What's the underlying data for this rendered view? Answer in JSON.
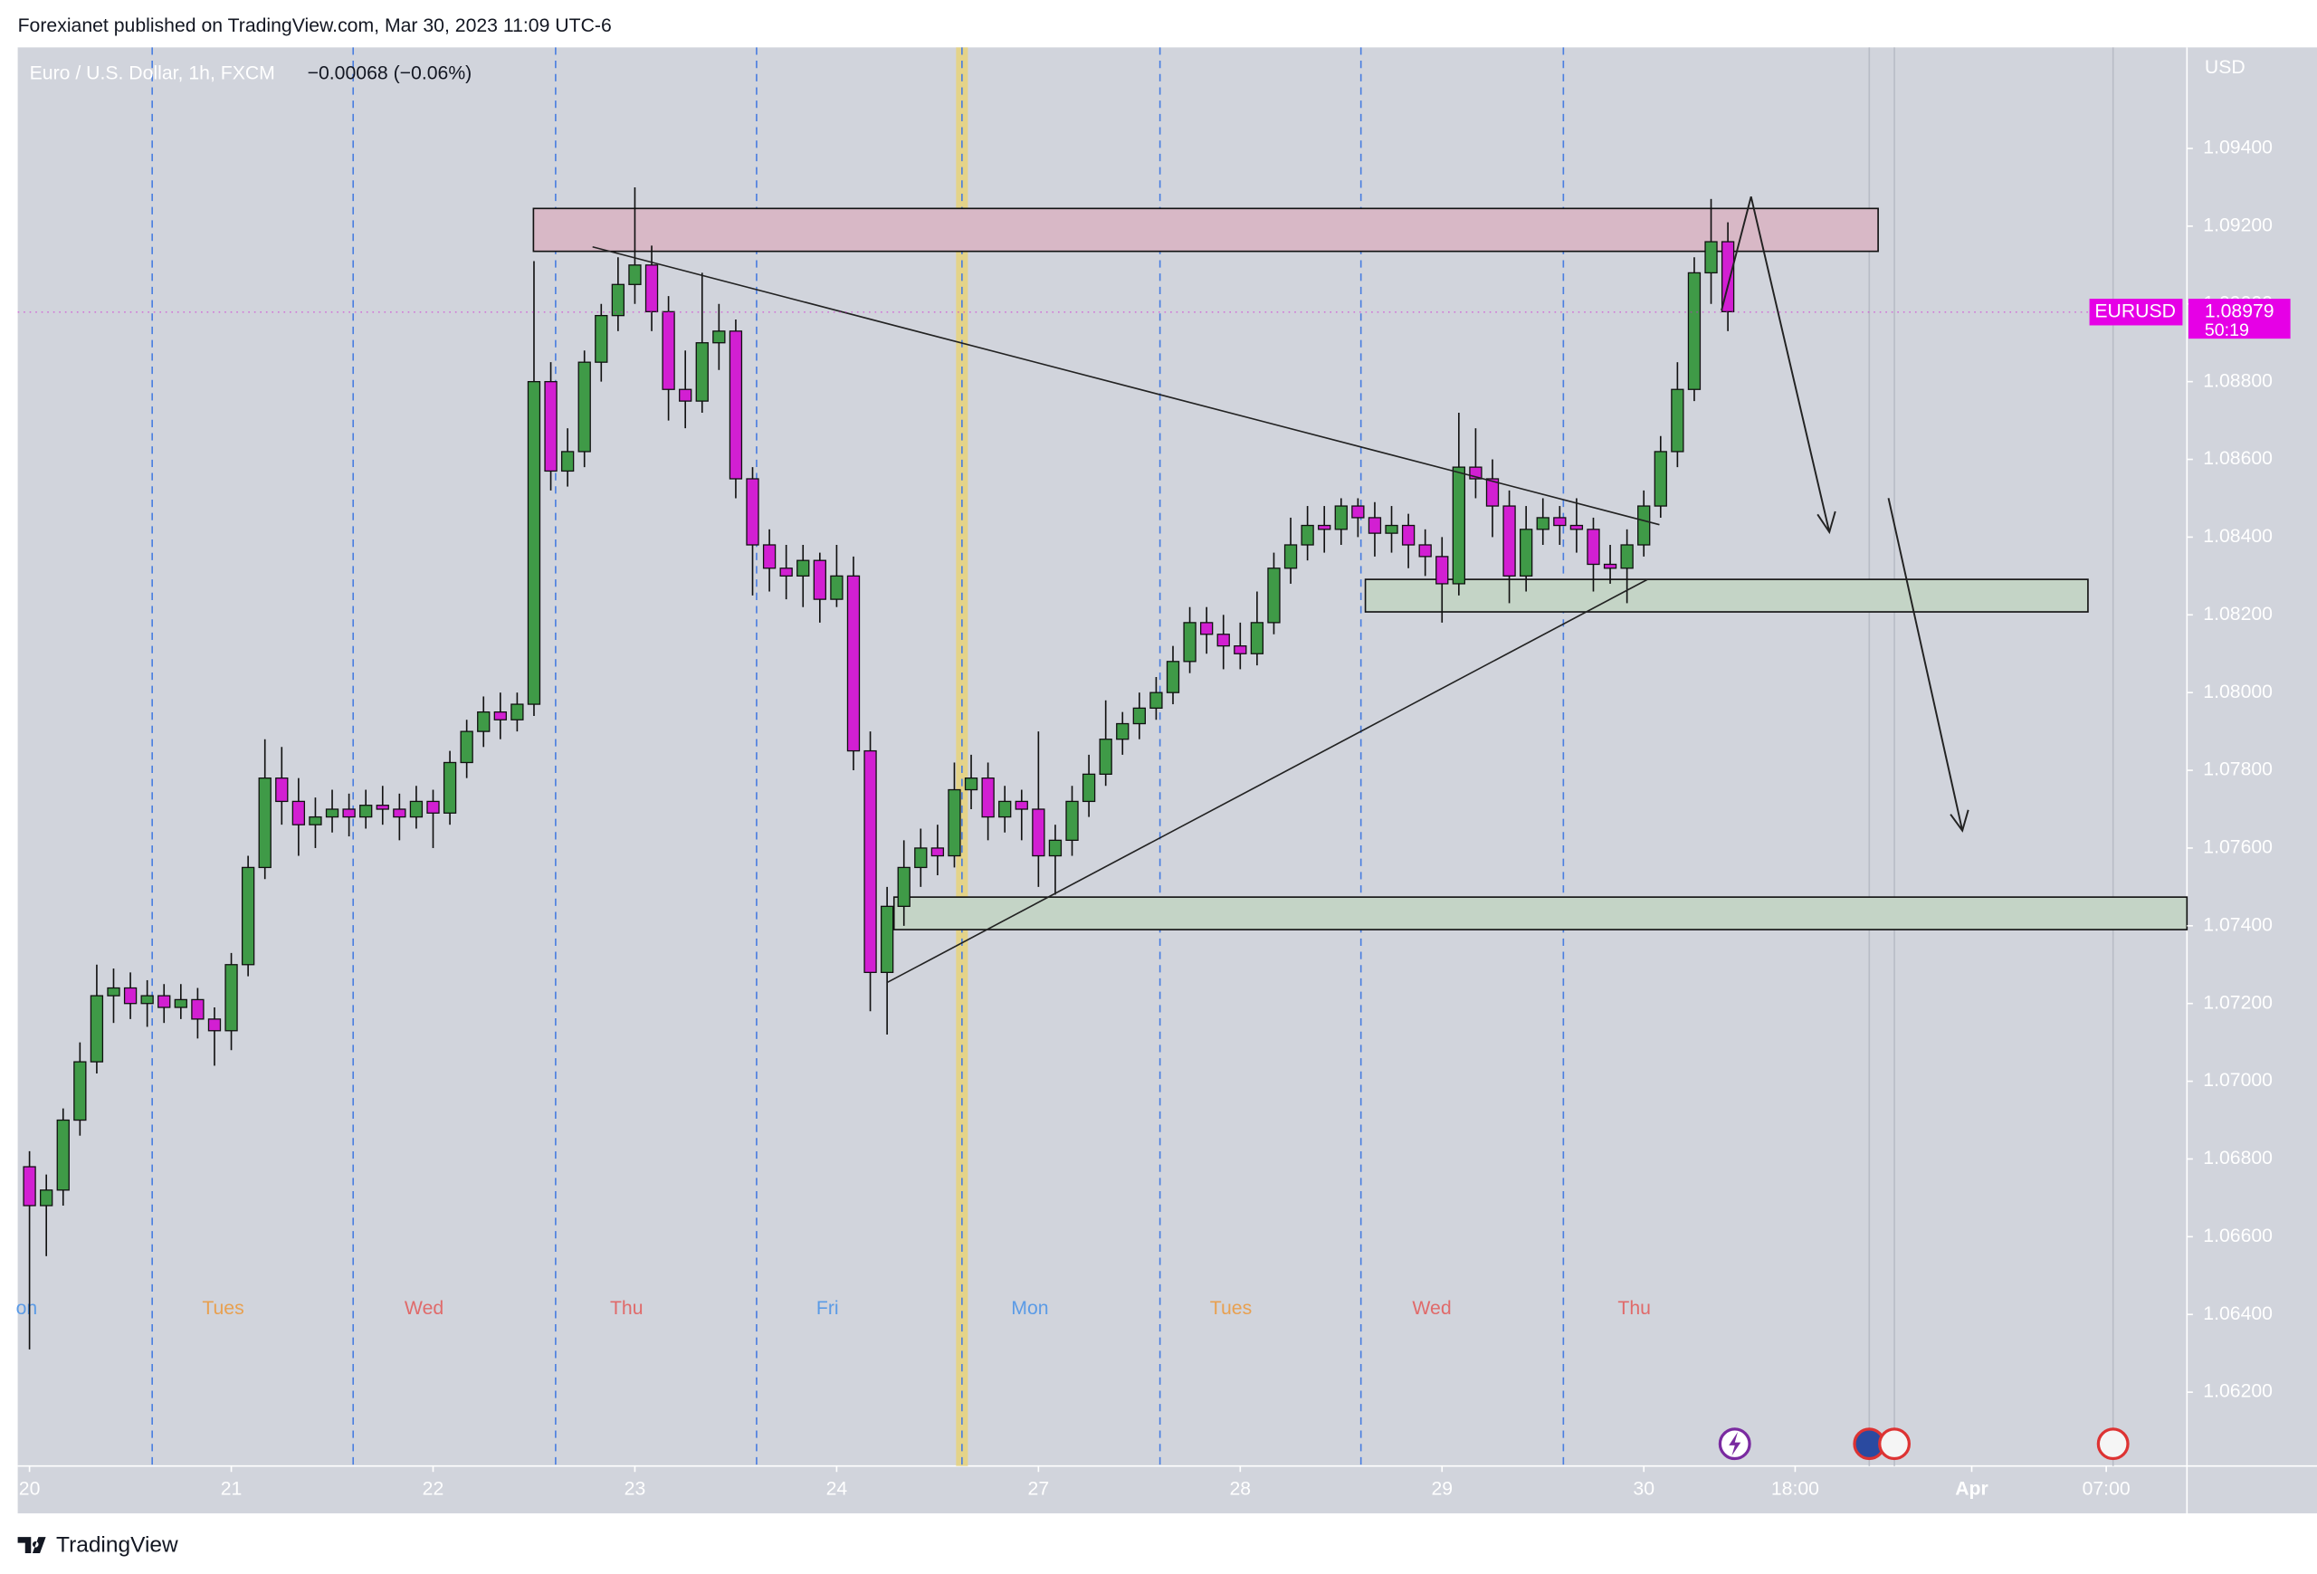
{
  "header": {
    "published": "Forexianet published on TradingView.com, Mar 30, 2023 11:09 UTC-6"
  },
  "footer": {
    "brand": "TradingView"
  },
  "chart_data": {
    "type": "candlestick",
    "title": "Euro / U.S. Dollar, 1h, FXCM",
    "change": "−0.00068 (−0.06%)",
    "currency": "USD",
    "symbol": "EURUSD",
    "last_price": 1.08979,
    "countdown": "50:19",
    "session_labels": [
      "on",
      "Tues",
      "Wed",
      "Thu",
      "Fri",
      "Mon",
      "Tues",
      "Wed",
      "Thu"
    ],
    "up_color": "#3f9a47",
    "down_color": "#d21fd2",
    "grid": false,
    "xlim": [
      -1.4,
      256.6
    ],
    "xticks": [
      {
        "value": 0,
        "label": "20"
      },
      {
        "value": 24,
        "label": "21"
      },
      {
        "value": 48,
        "label": "22"
      },
      {
        "value": 72,
        "label": "23"
      },
      {
        "value": 96,
        "label": "24"
      },
      {
        "value": 120,
        "label": "27"
      },
      {
        "value": 144,
        "label": "28"
      },
      {
        "value": 168,
        "label": "29"
      },
      {
        "value": 192,
        "label": "30"
      },
      {
        "value": 210,
        "label": "18:00"
      },
      {
        "value": 231,
        "label": "Apr"
      },
      {
        "value": 247,
        "label": "07:00"
      }
    ],
    "ylim": [
      1.0601,
      1.0966
    ],
    "yticks": [
      {
        "value": 1.062,
        "label": "1.06200"
      },
      {
        "value": 1.064,
        "label": "1.06400"
      },
      {
        "value": 1.066,
        "label": "1.06600"
      },
      {
        "value": 1.068,
        "label": "1.06800"
      },
      {
        "value": 1.07,
        "label": "1.07000"
      },
      {
        "value": 1.072,
        "label": "1.07200"
      },
      {
        "value": 1.074,
        "label": "1.07400"
      },
      {
        "value": 1.076,
        "label": "1.07600"
      },
      {
        "value": 1.078,
        "label": "1.07800"
      },
      {
        "value": 1.08,
        "label": "1.08000"
      },
      {
        "value": 1.082,
        "label": "1.08200"
      },
      {
        "value": 1.084,
        "label": "1.08400"
      },
      {
        "value": 1.086,
        "label": "1.08600"
      },
      {
        "value": 1.088,
        "label": "1.08800"
      },
      {
        "value": 1.09,
        "label": "1.09000"
      },
      {
        "value": 1.092,
        "label": "1.09200"
      },
      {
        "value": 1.094,
        "label": "1.09400"
      }
    ],
    "x": [
      0,
      2,
      4,
      6,
      8,
      10,
      12,
      14,
      16,
      18,
      20,
      22,
      24,
      26,
      28,
      30,
      32,
      34,
      36,
      38,
      40,
      42,
      44,
      46,
      48,
      50,
      52,
      54,
      56,
      58,
      60,
      62,
      64,
      66,
      68,
      70,
      72,
      74,
      76,
      78,
      80,
      82,
      84,
      86,
      88,
      90,
      92,
      94,
      96,
      98,
      100,
      102,
      104,
      106,
      108,
      110,
      112,
      114,
      116,
      118,
      120,
      122,
      124,
      126,
      128,
      130,
      132,
      134,
      136,
      138,
      140,
      142,
      144,
      146,
      148,
      150,
      152,
      154,
      156,
      158,
      160,
      162,
      164,
      166,
      168,
      170,
      172,
      174,
      176,
      178,
      180,
      182,
      184,
      186,
      188,
      190,
      192,
      194,
      196,
      198,
      200,
      202
    ],
    "open": [
      1.0678,
      1.0668,
      1.0672,
      1.069,
      1.0705,
      1.0722,
      1.0724,
      1.072,
      1.0722,
      1.0719,
      1.0721,
      1.0716,
      1.0713,
      1.073,
      1.0755,
      1.0778,
      1.0772,
      1.0766,
      1.0768,
      1.077,
      1.0768,
      1.0771,
      1.077,
      1.0768,
      1.0772,
      1.0769,
      1.0782,
      1.079,
      1.0795,
      1.0793,
      1.0797,
      1.088,
      1.0857,
      1.0862,
      1.0885,
      1.0897,
      1.0905,
      1.091,
      1.0898,
      1.0878,
      1.0875,
      1.089,
      1.0893,
      1.0855,
      1.0838,
      1.0832,
      1.083,
      1.0834,
      1.0824,
      1.083,
      1.0785,
      1.0728,
      1.0745,
      1.0755,
      1.076,
      1.0758,
      1.0775,
      1.0778,
      1.0768,
      1.0772,
      1.077,
      1.0758,
      1.0762,
      1.0772,
      1.0779,
      1.0788,
      1.0792,
      1.0796,
      1.08,
      1.0808,
      1.0818,
      1.0815,
      1.0812,
      1.081,
      1.0818,
      1.0832,
      1.0838,
      1.0843,
      1.0842,
      1.0848,
      1.0845,
      1.0841,
      1.0843,
      1.0838,
      1.0835,
      1.0828,
      1.0858,
      1.0855,
      1.0848,
      1.083,
      1.0842,
      1.0845,
      1.0843,
      1.0842,
      1.0833,
      1.0832,
      1.0838,
      1.0848,
      1.0862,
      1.0878,
      1.0908,
      1.0916
    ],
    "high": [
      1.0682,
      1.0676,
      1.0693,
      1.071,
      1.073,
      1.0729,
      1.0728,
      1.0726,
      1.0725,
      1.0725,
      1.0724,
      1.0719,
      1.0733,
      1.0758,
      1.0788,
      1.0786,
      1.0778,
      1.0773,
      1.0775,
      1.0774,
      1.0775,
      1.0776,
      1.0774,
      1.0776,
      1.0775,
      1.0785,
      1.0793,
      1.0799,
      1.08,
      1.08,
      1.0911,
      1.0885,
      1.0868,
      1.0888,
      1.09,
      1.0912,
      1.093,
      1.0915,
      1.0902,
      1.0888,
      1.0908,
      1.09,
      1.0896,
      1.0858,
      1.0842,
      1.0838,
      1.0838,
      1.0836,
      1.0838,
      1.0835,
      1.079,
      1.075,
      1.0762,
      1.0765,
      1.0766,
      1.0782,
      1.0784,
      1.0782,
      1.0776,
      1.0775,
      1.079,
      1.0766,
      1.0776,
      1.0784,
      1.0798,
      1.0795,
      1.08,
      1.0804,
      1.0812,
      1.0822,
      1.0822,
      1.082,
      1.0818,
      1.0826,
      1.0836,
      1.0845,
      1.0848,
      1.0848,
      1.085,
      1.085,
      1.0849,
      1.0848,
      1.0846,
      1.0842,
      1.084,
      1.0872,
      1.0868,
      1.086,
      1.0852,
      1.0848,
      1.085,
      1.0848,
      1.085,
      1.0845,
      1.0838,
      1.0842,
      1.0852,
      1.0866,
      1.0885,
      1.0912,
      1.0927,
      1.0921
    ],
    "low": [
      1.0631,
      1.0655,
      1.0668,
      1.0686,
      1.0702,
      1.0715,
      1.0716,
      1.0714,
      1.0715,
      1.0716,
      1.0711,
      1.0704,
      1.0708,
      1.0727,
      1.0752,
      1.0766,
      1.0758,
      1.076,
      1.0764,
      1.0763,
      1.0765,
      1.0766,
      1.0762,
      1.0765,
      1.076,
      1.0766,
      1.0778,
      1.0786,
      1.0788,
      1.079,
      1.0794,
      1.0852,
      1.0853,
      1.0858,
      1.088,
      1.0893,
      1.09,
      1.0893,
      1.087,
      1.0868,
      1.0872,
      1.0883,
      1.085,
      1.0825,
      1.0826,
      1.0824,
      1.0822,
      1.0818,
      1.0822,
      1.078,
      1.0718,
      1.0712,
      1.074,
      1.075,
      1.0753,
      1.0755,
      1.077,
      1.0762,
      1.0764,
      1.0762,
      1.075,
      1.0748,
      1.0758,
      1.0768,
      1.0776,
      1.0784,
      1.0788,
      1.0793,
      1.0797,
      1.0805,
      1.081,
      1.0806,
      1.0806,
      1.0807,
      1.0815,
      1.0828,
      1.0834,
      1.0836,
      1.0838,
      1.084,
      1.0835,
      1.0836,
      1.0832,
      1.083,
      1.0818,
      1.0825,
      1.085,
      1.084,
      1.0823,
      1.0826,
      1.0838,
      1.0838,
      1.0836,
      1.0826,
      1.0828,
      1.0823,
      1.0835,
      1.0845,
      1.0858,
      1.0875,
      1.09,
      1.0893
    ],
    "close": [
      1.0668,
      1.0672,
      1.069,
      1.0705,
      1.0722,
      1.0724,
      1.072,
      1.0722,
      1.0719,
      1.0721,
      1.0716,
      1.0713,
      1.073,
      1.0755,
      1.0778,
      1.0772,
      1.0766,
      1.0768,
      1.077,
      1.0768,
      1.0771,
      1.077,
      1.0768,
      1.0772,
      1.0769,
      1.0782,
      1.079,
      1.0795,
      1.0793,
      1.0797,
      1.088,
      1.0857,
      1.0862,
      1.0885,
      1.0897,
      1.0905,
      1.091,
      1.0898,
      1.0878,
      1.0875,
      1.089,
      1.0893,
      1.0855,
      1.0838,
      1.0832,
      1.083,
      1.0834,
      1.0824,
      1.083,
      1.0785,
      1.0728,
      1.0745,
      1.0755,
      1.076,
      1.0758,
      1.0775,
      1.0778,
      1.0768,
      1.0772,
      1.077,
      1.0758,
      1.0762,
      1.0772,
      1.0779,
      1.0788,
      1.0792,
      1.0796,
      1.08,
      1.0808,
      1.0818,
      1.0815,
      1.0812,
      1.081,
      1.0818,
      1.0832,
      1.0838,
      1.0843,
      1.0842,
      1.0848,
      1.0845,
      1.0841,
      1.0843,
      1.0838,
      1.0835,
      1.0828,
      1.0858,
      1.0855,
      1.0848,
      1.083,
      1.0842,
      1.0845,
      1.0843,
      1.0842,
      1.0833,
      1.0832,
      1.0838,
      1.0848,
      1.0862,
      1.0878,
      1.0908,
      1.0916,
      1.0898
    ]
  }
}
